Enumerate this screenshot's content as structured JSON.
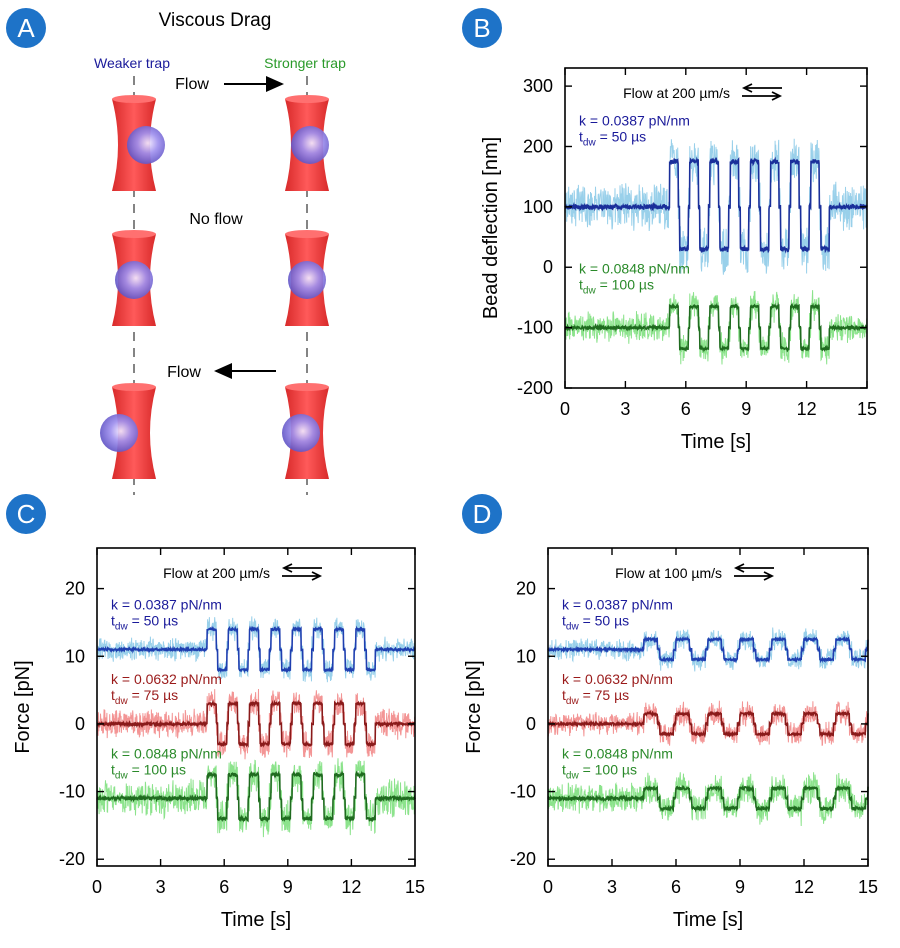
{
  "panel_letters": [
    "A",
    "B",
    "C",
    "D"
  ],
  "panel_a": {
    "title": "Viscous Drag",
    "weaker_label": "Weaker trap",
    "stronger_label": "Stronger trap",
    "flow_right_label": "Flow",
    "no_flow_label": "No flow",
    "flow_left_label": "Flow",
    "colors": {
      "weaker": "#1a1a9a",
      "stronger": "#2a9a2a",
      "trap": "#ee3b3b",
      "bead": "#8a7ee0"
    }
  },
  "chart_data": [
    {
      "panel": "B",
      "type": "line",
      "flow_label": "Flow at 200 µm/s",
      "xlabel": "Time [s]",
      "ylabel": "Bead deflection [nm]",
      "xlim": [
        0,
        15
      ],
      "ylim": [
        -200,
        330
      ],
      "xticks": [
        0,
        3,
        6,
        9,
        12,
        15
      ],
      "yticks": [
        -200,
        -100,
        0,
        100,
        200,
        300
      ],
      "square_wave": {
        "start": 5.2,
        "period": 1.0,
        "cycles": 8
      },
      "series": [
        {
          "k_label": "k = 0.0387 pN/nm",
          "t_label": "50 µs",
          "base": 100,
          "high": 175,
          "low": 30,
          "noise": 22,
          "color": "#1a2f9a",
          "band_color": "#8ecbe8",
          "label_color": "#1a1a9a"
        },
        {
          "k_label": "k = 0.0848 pN/nm",
          "t_label": "100 µs",
          "base": -100,
          "high": -65,
          "low": -135,
          "noise": 14,
          "color": "#1f6b1f",
          "band_color": "#7fe07f",
          "label_color": "#2a8a2a"
        }
      ]
    },
    {
      "panel": "C",
      "type": "line",
      "flow_label": "Flow at 200 µm/s",
      "xlabel": "Time [s]",
      "ylabel": "Force [pN]",
      "xlim": [
        0,
        15
      ],
      "ylim": [
        -21,
        26
      ],
      "xticks": [
        0,
        3,
        6,
        9,
        12,
        15
      ],
      "yticks": [
        -20,
        -10,
        0,
        10,
        20
      ],
      "square_wave": {
        "start": 5.2,
        "period": 1.0,
        "cycles": 8
      },
      "series": [
        {
          "k_label": "k = 0.0387 pN/nm",
          "t_label": "50 µs",
          "base": 11,
          "high": 14,
          "low": 8,
          "noise": 1.0,
          "color": "#1f3fb0",
          "band_color": "#8ecbe8",
          "label_color": "#1a1a9a"
        },
        {
          "k_label": "k = 0.0632 pN/nm",
          "t_label": "75 µs",
          "base": 0,
          "high": 3,
          "low": -3,
          "noise": 1.2,
          "color": "#8a1a1a",
          "band_color": "#f28a8a",
          "label_color": "#9a1a1a"
        },
        {
          "k_label": "k = 0.0848 pN/nm",
          "t_label": "100 µs",
          "base": -11,
          "high": -7.5,
          "low": -14,
          "noise": 1.5,
          "color": "#1f6b1f",
          "band_color": "#7fe07f",
          "label_color": "#2a8a2a"
        }
      ]
    },
    {
      "panel": "D",
      "type": "line",
      "flow_label": "Flow at 100 µm/s",
      "xlabel": "Time [s]",
      "ylabel": "Force [pN]",
      "xlim": [
        0,
        15
      ],
      "ylim": [
        -21,
        26
      ],
      "xticks": [
        0,
        3,
        6,
        9,
        12,
        15
      ],
      "yticks": [
        -20,
        -10,
        0,
        10,
        20
      ],
      "square_wave": {
        "start": 4.5,
        "period": 1.5,
        "cycles": 7
      },
      "series": [
        {
          "k_label": "k = 0.0387 pN/nm",
          "t_label": "50 µs",
          "base": 11,
          "high": 12.5,
          "low": 9.5,
          "noise": 0.9,
          "color": "#1f3fb0",
          "band_color": "#8ecbe8",
          "label_color": "#1a1a9a"
        },
        {
          "k_label": "k = 0.0632 pN/nm",
          "t_label": "75 µs",
          "base": 0,
          "high": 1.5,
          "low": -1.5,
          "noise": 1.0,
          "color": "#8a1a1a",
          "band_color": "#f28a8a",
          "label_color": "#9a1a1a"
        },
        {
          "k_label": "k = 0.0848 pN/nm",
          "t_label": "100 µs",
          "base": -11,
          "high": -9.5,
          "low": -12.5,
          "noise": 1.3,
          "color": "#1f6b1f",
          "band_color": "#7fe07f",
          "label_color": "#2a8a2a"
        }
      ]
    }
  ]
}
